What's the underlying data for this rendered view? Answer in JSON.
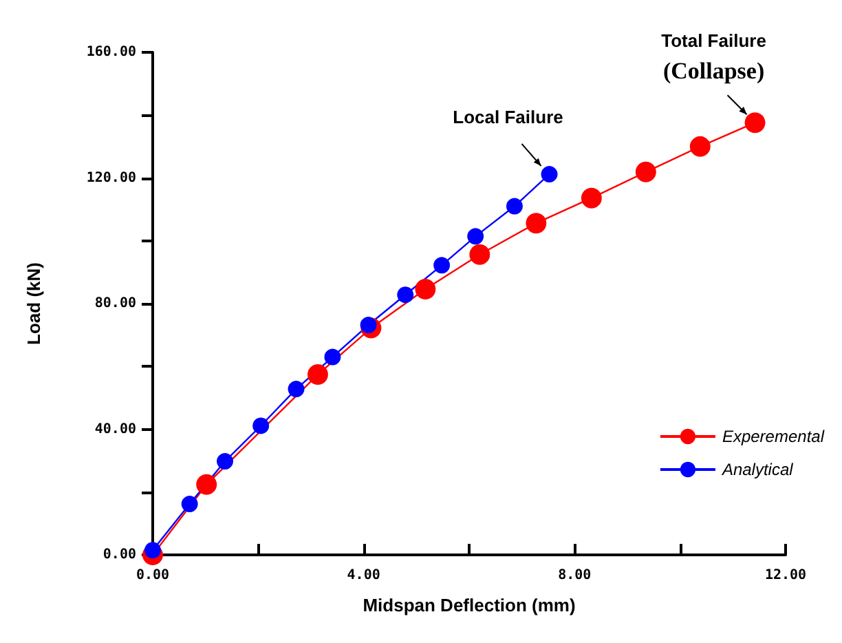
{
  "chart_data": {
    "type": "line",
    "xlabel": "Midspan Deflection (mm)",
    "ylabel": "Load (kN)",
    "xlim": [
      0,
      12
    ],
    "xticks": [
      {
        "value": 0,
        "label": "0.00"
      },
      {
        "value": 2,
        "label": null
      },
      {
        "value": 4,
        "label": "4.00"
      },
      {
        "value": 6,
        "label": null
      },
      {
        "value": 8,
        "label": "8.00"
      },
      {
        "value": 10,
        "label": null
      },
      {
        "value": 12,
        "label": "12.00"
      }
    ],
    "ylim": [
      0,
      160
    ],
    "yticks": [
      {
        "value": 0,
        "label": "0.00"
      },
      {
        "value": 20,
        "label": null
      },
      {
        "value": 40,
        "label": "40.00"
      },
      {
        "value": 60,
        "label": null
      },
      {
        "value": 80,
        "label": "80.00"
      },
      {
        "value": 100,
        "label": null
      },
      {
        "value": 120,
        "label": "120.00"
      },
      {
        "value": 140,
        "label": null
      },
      {
        "value": 160,
        "label": "160.00"
      }
    ],
    "series": [
      {
        "name": "Experemental",
        "color": "#ff0000",
        "x": [
          0,
          1.02,
          3.13,
          4.14,
          5.17,
          6.2,
          7.27,
          8.32,
          9.35,
          10.38,
          11.42
        ],
        "values": [
          0,
          22.4,
          57.4,
          72.2,
          84.6,
          95.6,
          105.6,
          113.6,
          121.9,
          130,
          137.6
        ]
      },
      {
        "name": "Analytical",
        "color": "#0000ff",
        "x": [
          0,
          0.7,
          1.37,
          2.05,
          2.72,
          3.41,
          4.09,
          4.79,
          5.48,
          6.12,
          6.86,
          7.52
        ],
        "values": [
          1.5,
          16.2,
          29.8,
          41.1,
          52.8,
          63,
          73.2,
          82.8,
          92.2,
          101.4,
          111,
          121.2
        ]
      }
    ],
    "annotations": [
      {
        "text": "Local Failure",
        "x": 7.52,
        "y": 121.2
      },
      {
        "text": "Total Failure\n(Collapse)",
        "x": 11.42,
        "y": 137.6
      }
    ],
    "marker": "circle",
    "line_style": "solid",
    "grid": false,
    "legend": "bottom right"
  }
}
